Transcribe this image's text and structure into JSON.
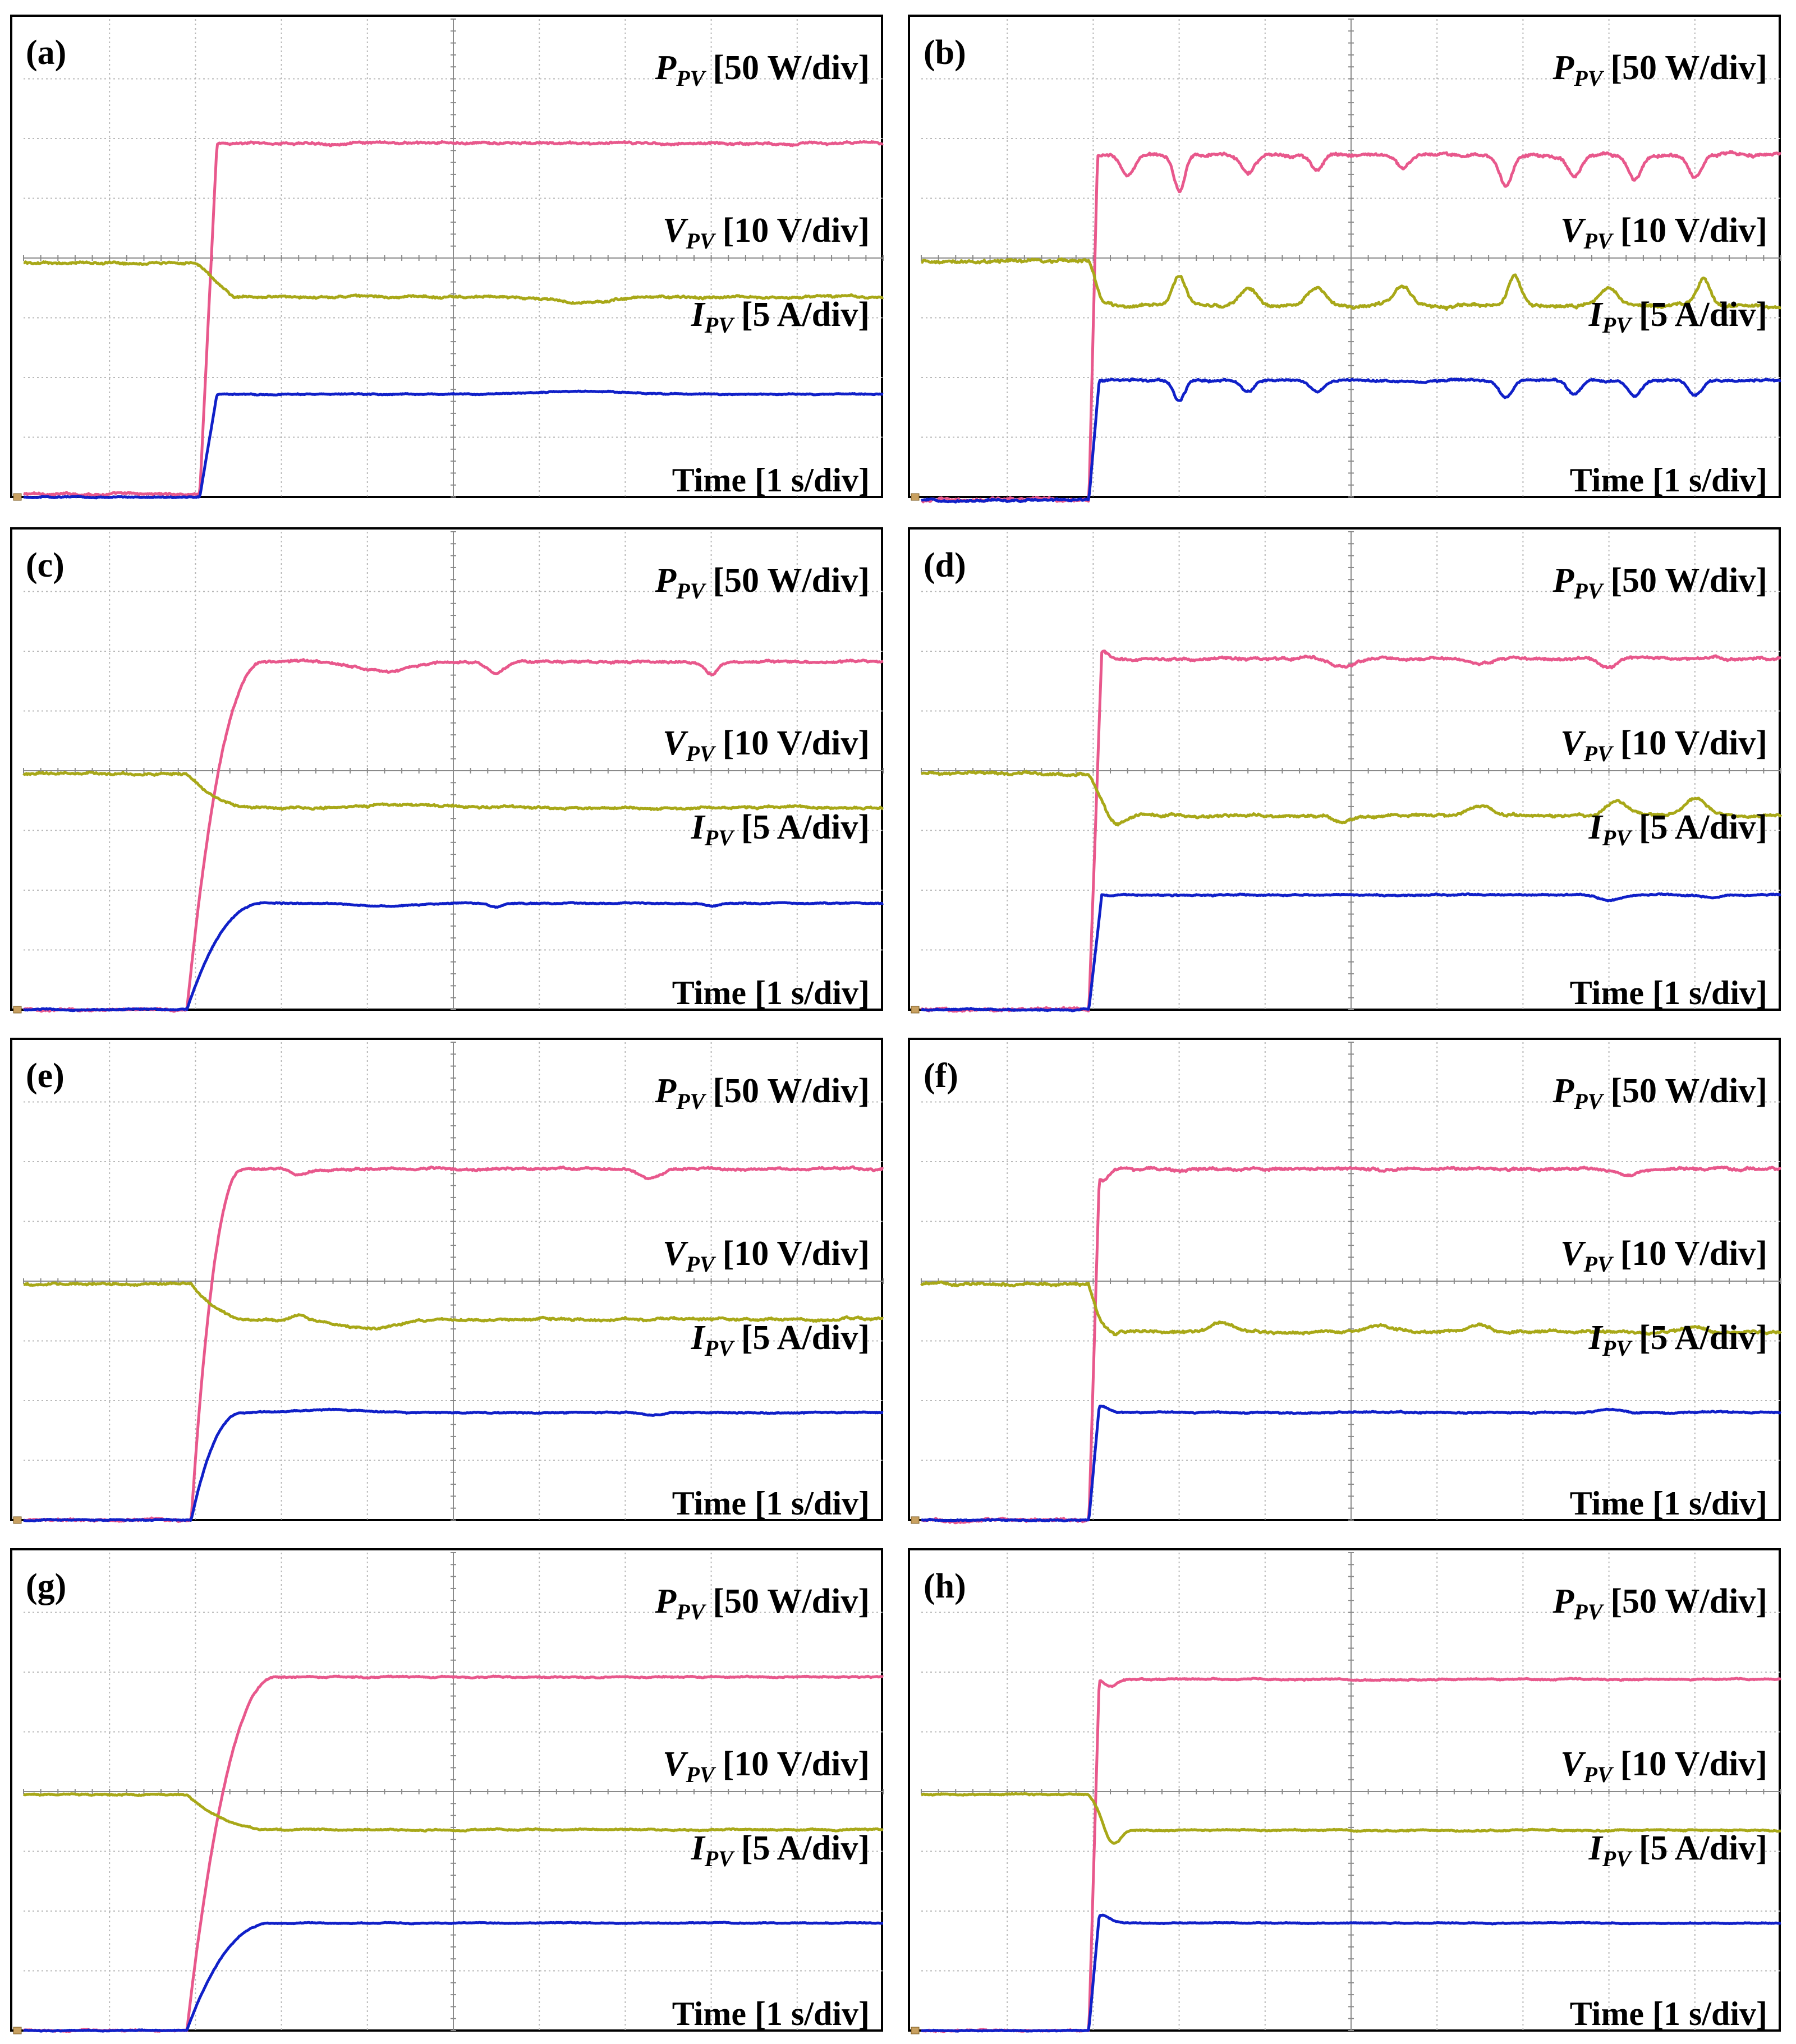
{
  "figure": {
    "description_labels": {
      "power": {
        "symbol": "P",
        "subscript": "PV",
        "unit": "[50 W/div]"
      },
      "voltage": {
        "symbol": "V",
        "subscript": "PV",
        "unit": "[10 V/div]"
      },
      "current": {
        "symbol": "I",
        "subscript": "PV",
        "unit": "[5 A/div]"
      },
      "time": "Time [1 s/div]"
    },
    "colors": {
      "power": "#e8588c",
      "voltage": "#a8a818",
      "current": "#1020c8"
    }
  },
  "chart_data": [
    {
      "type": "line",
      "panel": "(a)",
      "title": "(a)",
      "xlabel": "Time [1 s/div]",
      "xlim": [
        0,
        10
      ],
      "ylim": [
        0,
        8
      ],
      "series": [
        {
          "name": "P_PV [50 W/div]",
          "start_div": 2.05,
          "rise": 0.2,
          "level_before": 0.05,
          "level_after": 5.92,
          "noise": 0.02,
          "dips": []
        },
        {
          "name": "V_PV [10 V/div]",
          "start_div": 2.0,
          "rise": 0.45,
          "level_before": 3.92,
          "level_after": 3.35,
          "noise": 0.02,
          "dips": [
            [
              6.5,
              -0.1,
              1.4
            ]
          ]
        },
        {
          "name": "I_PV [5 A/div]",
          "start_div": 2.05,
          "rise": 0.2,
          "level_before": 0.0,
          "level_after": 1.72,
          "noise": 0.01,
          "dips": [
            [
              6.5,
              0.05,
              2.0
            ]
          ]
        }
      ]
    },
    {
      "type": "line",
      "panel": "(b)",
      "title": "(b)",
      "xlabel": "Time [1 s/div]",
      "xlim": [
        0,
        10
      ],
      "ylim": [
        0,
        8
      ],
      "series": [
        {
          "name": "P_PV [50 W/div]",
          "start_div": 1.95,
          "rise": 0.1,
          "level_before": -0.05,
          "level_after": 5.72,
          "noise": 0.03,
          "dips": [
            [
              2.4,
              -0.35,
              0.3
            ],
            [
              3.0,
              -0.6,
              0.25
            ],
            [
              3.8,
              -0.3,
              0.3
            ],
            [
              4.6,
              -0.25,
              0.3
            ],
            [
              5.6,
              -0.2,
              0.3
            ],
            [
              6.8,
              -0.5,
              0.3
            ],
            [
              7.6,
              -0.35,
              0.3
            ],
            [
              8.3,
              -0.4,
              0.3
            ],
            [
              9.0,
              -0.35,
              0.3
            ]
          ]
        },
        {
          "name": "V_PV [10 V/div]",
          "start_div": 1.95,
          "rise": 0.3,
          "level_before": 3.95,
          "level_after": 3.2,
          "noise": 0.03,
          "dips": [
            [
              2.1,
              -0.3,
              0.25
            ],
            [
              3.0,
              0.5,
              0.3
            ],
            [
              3.8,
              0.3,
              0.4
            ],
            [
              4.6,
              0.3,
              0.4
            ],
            [
              5.6,
              0.3,
              0.4
            ],
            [
              6.9,
              0.5,
              0.3
            ],
            [
              8.0,
              0.3,
              0.4
            ],
            [
              9.1,
              0.45,
              0.3
            ]
          ]
        },
        {
          "name": "I_PV [5 A/div]",
          "start_div": 1.95,
          "rise": 0.12,
          "level_before": -0.05,
          "level_after": 1.95,
          "noise": 0.02,
          "dips": [
            [
              3.0,
              -0.35,
              0.25
            ],
            [
              3.8,
              -0.2,
              0.3
            ],
            [
              4.6,
              -0.2,
              0.3
            ],
            [
              6.8,
              -0.3,
              0.3
            ],
            [
              7.6,
              -0.25,
              0.3
            ],
            [
              8.3,
              -0.25,
              0.3
            ],
            [
              9.0,
              -0.25,
              0.3
            ]
          ]
        }
      ]
    },
    {
      "type": "line",
      "panel": "(c)",
      "title": "(c)",
      "xlabel": "Time [1 s/div]",
      "xlim": [
        0,
        10
      ],
      "ylim": [
        0,
        8
      ],
      "series": [
        {
          "name": "P_PV [50 W/div]",
          "start_div": 1.9,
          "rise": 0.9,
          "level_before": 0.0,
          "level_after": 5.82,
          "noise": 0.02,
          "dips": [
            [
              4.2,
              -0.15,
              1.2
            ],
            [
              5.5,
              -0.2,
              0.4
            ],
            [
              8.0,
              -0.2,
              0.3
            ]
          ]
        },
        {
          "name": "V_PV [10 V/div]",
          "start_div": 1.9,
          "rise": 0.8,
          "level_before": 3.95,
          "level_after": 3.38,
          "noise": 0.02,
          "dips": [
            [
              4.5,
              0.05,
              2.0
            ]
          ]
        },
        {
          "name": "I_PV [5 A/div]",
          "start_div": 1.9,
          "rise": 0.9,
          "level_before": 0.0,
          "level_after": 1.78,
          "noise": 0.01,
          "dips": [
            [
              4.2,
              -0.05,
              1.2
            ],
            [
              5.5,
              -0.06,
              0.3
            ],
            [
              8.0,
              -0.05,
              0.3
            ]
          ]
        }
      ]
    },
    {
      "type": "line",
      "panel": "(d)",
      "title": "(d)",
      "xlabel": "Time [1 s/div]",
      "xlim": [
        0,
        10
      ],
      "ylim": [
        0,
        8
      ],
      "series": [
        {
          "name": "P_PV [50 W/div]",
          "start_div": 1.95,
          "rise": 0.15,
          "level_before": 0.0,
          "level_after": 5.88,
          "noise": 0.025,
          "dips": [
            [
              2.1,
              0.1,
              0.3
            ],
            [
              4.9,
              -0.15,
              0.5
            ],
            [
              6.5,
              -0.1,
              0.5
            ],
            [
              8.0,
              -0.15,
              0.4
            ]
          ]
        },
        {
          "name": "V_PV [10 V/div]",
          "start_div": 1.95,
          "rise": 0.35,
          "level_before": 3.95,
          "level_after": 3.25,
          "noise": 0.025,
          "dips": [
            [
              2.2,
              -0.25,
              0.4
            ],
            [
              4.9,
              -0.1,
              0.5
            ],
            [
              6.5,
              0.15,
              0.6
            ],
            [
              8.1,
              0.25,
              0.5
            ],
            [
              9.0,
              0.3,
              0.5
            ]
          ]
        },
        {
          "name": "I_PV [5 A/div]",
          "start_div": 1.95,
          "rise": 0.15,
          "level_before": 0.0,
          "level_after": 1.92,
          "noise": 0.012,
          "dips": [
            [
              8.0,
              -0.1,
              0.5
            ],
            [
              9.2,
              -0.05,
              0.4
            ]
          ]
        }
      ]
    },
    {
      "type": "line",
      "panel": "(e)",
      "title": "(e)",
      "xlabel": "Time [1 s/div]",
      "xlim": [
        0,
        10
      ],
      "ylim": [
        0,
        8
      ],
      "series": [
        {
          "name": "P_PV [50 W/div]",
          "start_div": 1.95,
          "rise": 0.6,
          "level_before": 0.0,
          "level_after": 5.88,
          "noise": 0.02,
          "dips": [
            [
              3.2,
              -0.12,
              0.4
            ],
            [
              7.3,
              -0.15,
              0.5
            ]
          ]
        },
        {
          "name": "V_PV [10 V/div]",
          "start_div": 1.95,
          "rise": 0.7,
          "level_before": 3.95,
          "level_after": 3.36,
          "noise": 0.02,
          "dips": [
            [
              3.2,
              0.08,
              0.3
            ],
            [
              4.0,
              -0.15,
              1.4
            ]
          ]
        },
        {
          "name": "I_PV [5 A/div]",
          "start_div": 1.95,
          "rise": 0.6,
          "level_before": 0.0,
          "level_after": 1.8,
          "noise": 0.01,
          "dips": [
            [
              3.6,
              0.05,
              1.4
            ],
            [
              7.3,
              -0.05,
              0.4
            ]
          ]
        }
      ]
    },
    {
      "type": "line",
      "panel": "(f)",
      "title": "(f)",
      "xlabel": "Time [1 s/div]",
      "xlim": [
        0,
        10
      ],
      "ylim": [
        0,
        8
      ],
      "series": [
        {
          "name": "P_PV [50 W/div]",
          "start_div": 1.95,
          "rise": 0.12,
          "level_before": 0.0,
          "level_after": 5.88,
          "noise": 0.025,
          "dips": [
            [
              2.1,
              -0.2,
              0.3
            ],
            [
              8.2,
              -0.1,
              0.5
            ]
          ]
        },
        {
          "name": "V_PV [10 V/div]",
          "start_div": 1.95,
          "rise": 0.3,
          "level_before": 3.95,
          "level_after": 3.15,
          "noise": 0.025,
          "dips": [
            [
              2.1,
              -0.25,
              0.35
            ],
            [
              3.5,
              0.15,
              0.5
            ],
            [
              5.3,
              0.1,
              0.7
            ],
            [
              6.5,
              0.12,
              0.5
            ],
            [
              9.0,
              0.08,
              0.5
            ]
          ]
        },
        {
          "name": "I_PV [5 A/div]",
          "start_div": 1.95,
          "rise": 0.12,
          "level_before": 0.0,
          "level_after": 1.8,
          "noise": 0.012,
          "dips": [
            [
              2.1,
              0.1,
              0.3
            ],
            [
              8.0,
              0.06,
              0.5
            ]
          ]
        }
      ]
    },
    {
      "type": "line",
      "panel": "(g)",
      "title": "(g)",
      "xlabel": "Time [1 s/div]",
      "xlim": [
        0,
        10
      ],
      "ylim": [
        0,
        8
      ],
      "series": [
        {
          "name": "P_PV [50 W/div]",
          "start_div": 1.9,
          "rise": 1.05,
          "level_before": 0.0,
          "level_after": 5.92,
          "noise": 0.012,
          "dips": []
        },
        {
          "name": "V_PV [10 V/div]",
          "start_div": 1.9,
          "rise": 1.0,
          "level_before": 3.95,
          "level_after": 3.36,
          "noise": 0.012,
          "dips": []
        },
        {
          "name": "I_PV [5 A/div]",
          "start_div": 1.9,
          "rise": 1.0,
          "level_before": 0.0,
          "level_after": 1.8,
          "noise": 0.008,
          "dips": []
        }
      ]
    },
    {
      "type": "line",
      "panel": "(h)",
      "title": "(h)",
      "xlabel": "Time [1 s/div]",
      "xlim": [
        0,
        10
      ],
      "ylim": [
        0,
        8
      ],
      "series": [
        {
          "name": "P_PV [50 W/div]",
          "start_div": 1.95,
          "rise": 0.12,
          "level_before": 0.0,
          "level_after": 5.88,
          "noise": 0.012,
          "dips": [
            [
              2.2,
              -0.12,
              0.3
            ]
          ]
        },
        {
          "name": "V_PV [10 V/div]",
          "start_div": 1.95,
          "rise": 0.35,
          "level_before": 3.95,
          "level_after": 3.35,
          "noise": 0.012,
          "dips": [
            [
              2.2,
              -0.35,
              0.35
            ]
          ]
        },
        {
          "name": "I_PV [5 A/div]",
          "start_div": 1.95,
          "rise": 0.12,
          "level_before": 0.0,
          "level_after": 1.8,
          "noise": 0.008,
          "dips": [
            [
              2.1,
              0.12,
              0.35
            ]
          ]
        }
      ]
    }
  ]
}
